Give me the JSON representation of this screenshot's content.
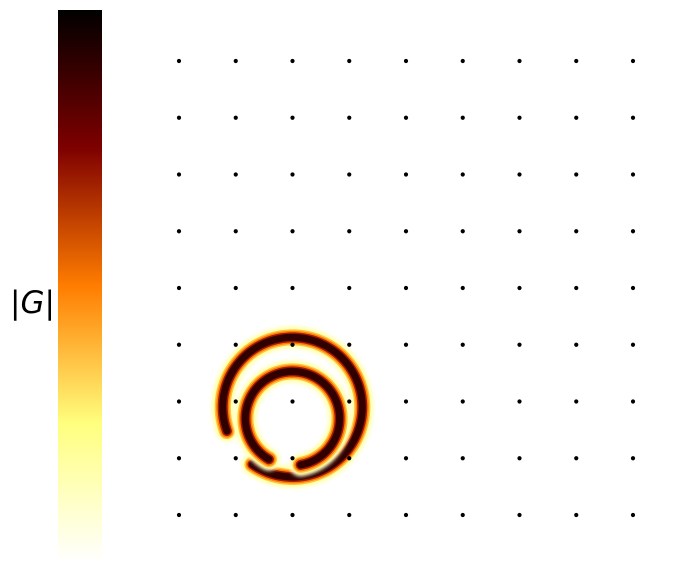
{
  "chart_data": {
    "type": "heatmap",
    "title": "",
    "colorbar": {
      "label_left": "|",
      "label_symbol": "G",
      "label_right": "|",
      "colormap": "afmhot",
      "ticks": []
    },
    "lattice": {
      "columns": 9,
      "rows": 9,
      "dot_color": "#000000"
    },
    "features": [
      {
        "name": "outer-arc",
        "center_col": 2,
        "center_row": 6.1,
        "radius_in_spacings": 1.23,
        "start_deg": 160,
        "end_deg": 485
      },
      {
        "name": "inner-arc",
        "center_col": 2,
        "center_row": 6.3,
        "radius_in_spacings": 0.83,
        "start_deg": 120,
        "end_deg": 440
      }
    ],
    "grid": false,
    "axes_visible": false
  }
}
